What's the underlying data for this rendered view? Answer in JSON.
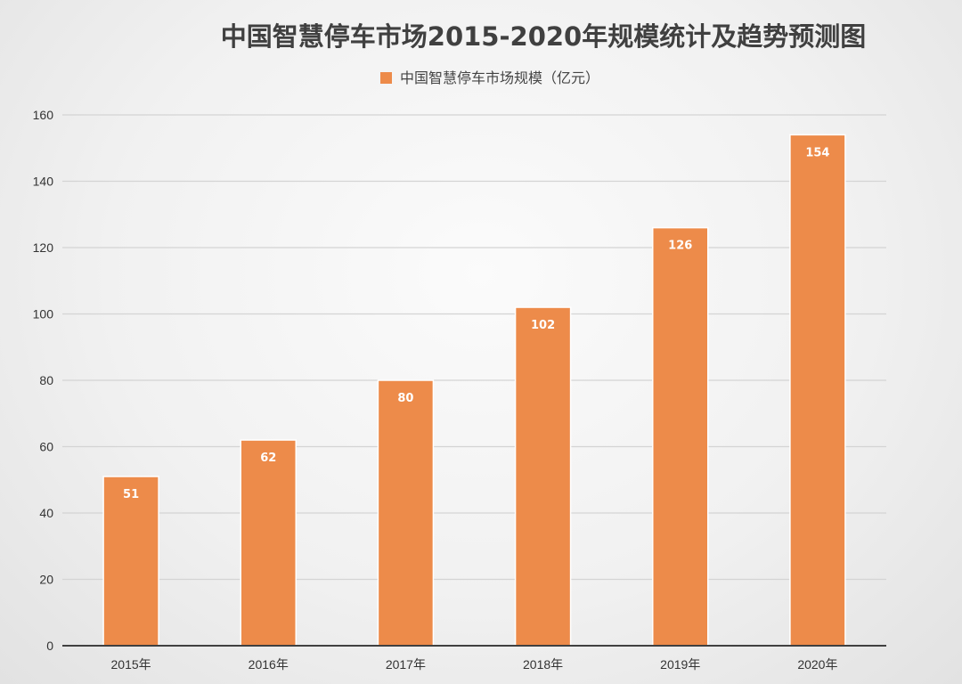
{
  "chart_data": {
    "type": "bar",
    "title": "中国智慧停车市场2015-2020年规模统计及趋势预测图",
    "categories": [
      "2015年",
      "2016年",
      "2017年",
      "2018年",
      "2019年",
      "2020年"
    ],
    "series": [
      {
        "name": "中国智慧停车市场规模（亿元）",
        "values": [
          51,
          62,
          80,
          102,
          126,
          154
        ],
        "color": "#ED8B4A"
      }
    ],
    "ylim": [
      0,
      160
    ],
    "yticks": [
      "0",
      "20",
      "40",
      "60",
      "80",
      "100",
      "120",
      "140",
      "160"
    ],
    "grid": true,
    "legend_position": "top-center",
    "xlabel": "",
    "ylabel": ""
  }
}
